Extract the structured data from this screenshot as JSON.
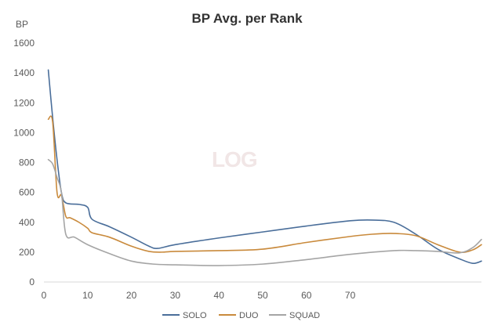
{
  "chart_data": {
    "type": "line",
    "title": "BP Avg. per Rank",
    "ylabel": "BP",
    "xlabel": "",
    "xlim": [
      0,
      100
    ],
    "ylim": [
      0,
      1600
    ],
    "xticks": [
      0,
      10,
      20,
      30,
      40,
      50,
      60,
      70
    ],
    "yticks": [
      0,
      200,
      400,
      600,
      800,
      1000,
      1200,
      1400,
      1600
    ],
    "grid": false,
    "legend": "bottom",
    "watermark": "LOG",
    "series": [
      {
        "name": "SOLO",
        "color": "#4a6e9a",
        "x": [
          1,
          2,
          3,
          4,
          5,
          8,
          10,
          11,
          15,
          20,
          24,
          26,
          30,
          40,
          50,
          60,
          70,
          75,
          80,
          85,
          90,
          95,
          98,
          100
        ],
        "y": [
          1420,
          1100,
          820,
          600,
          530,
          520,
          500,
          420,
          370,
          300,
          240,
          225,
          250,
          295,
          335,
          375,
          410,
          415,
          400,
          320,
          220,
          155,
          125,
          140
        ]
      },
      {
        "name": "DUO",
        "color": "#c98a3c",
        "x": [
          1,
          2,
          3,
          4,
          5,
          6,
          8,
          10,
          11,
          15,
          20,
          24,
          27,
          30,
          40,
          50,
          60,
          70,
          75,
          80,
          85,
          90,
          95,
          98,
          100
        ],
        "y": [
          1090,
          1070,
          600,
          580,
          440,
          430,
          400,
          360,
          330,
          300,
          240,
          205,
          200,
          205,
          210,
          220,
          265,
          305,
          320,
          325,
          310,
          250,
          200,
          215,
          250
        ]
      },
      {
        "name": "SQUAD",
        "color": "#a5a5a5",
        "x": [
          1,
          2,
          3,
          4,
          5,
          7,
          10,
          15,
          20,
          25,
          30,
          40,
          50,
          60,
          70,
          80,
          85,
          90,
          95,
          98,
          100
        ],
        "y": [
          820,
          790,
          700,
          600,
          320,
          300,
          250,
          190,
          140,
          120,
          115,
          110,
          120,
          150,
          185,
          210,
          210,
          205,
          195,
          230,
          285
        ]
      }
    ]
  }
}
